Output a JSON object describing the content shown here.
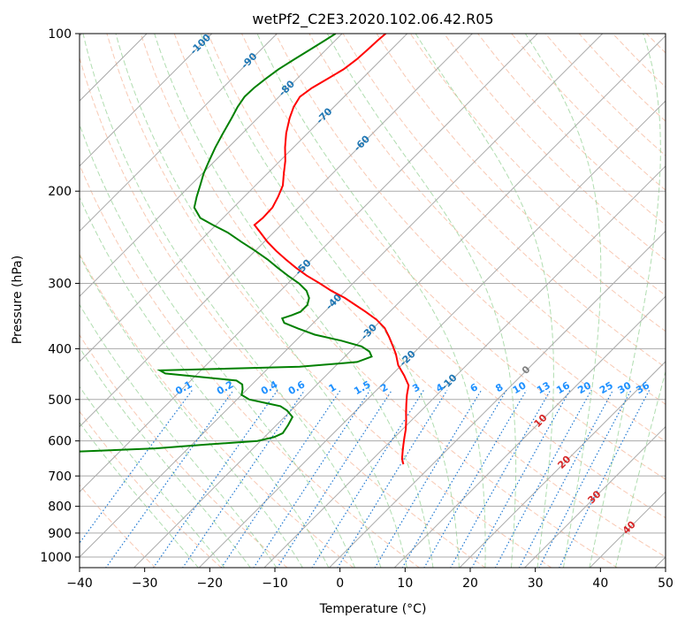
{
  "chart_data": {
    "type": "line",
    "subtype": "skew-t log-p diagram",
    "title": "wetPf2_C2E3.2020.102.06.42.R05",
    "xlabel": "Temperature (°C)",
    "ylabel": "Pressure (hPa)",
    "xlim": [
      -40,
      50
    ],
    "ylim": [
      1050,
      100
    ],
    "y_scale": "log",
    "x_ticks": [
      -40,
      -30,
      -20,
      -10,
      0,
      10,
      20,
      30,
      40,
      50
    ],
    "x_tick_labels": [
      "−40",
      "−30",
      "−20",
      "−10",
      "0",
      "10",
      "20",
      "30",
      "40",
      "50"
    ],
    "y_ticks": [
      100,
      200,
      300,
      400,
      500,
      600,
      700,
      800,
      900,
      1000
    ],
    "y_tick_labels": [
      "100",
      "200",
      "300",
      "400",
      "500",
      "600",
      "700",
      "800",
      "900",
      "1000"
    ],
    "grid": true,
    "legend": "none",
    "colors": {
      "temperature": "#ff0000",
      "dewpoint": "#008000",
      "isotherm": "#aaaaaa",
      "isobar": "#aaaaaa",
      "dry_adiabat": "#f4a582",
      "moist_adiabat": "#8fcf8f",
      "mixing_ratio": "#1f78d1",
      "isotherm_label_cold": "#1f77b4",
      "isotherm_label_zero": "#808080",
      "isotherm_label_warm": "#d62728",
      "mixing_ratio_label": "#1e90ff"
    },
    "isotherm_labels": [
      {
        "t": -100,
        "label": "-100"
      },
      {
        "t": -90,
        "label": "-90"
      },
      {
        "t": -80,
        "label": "-80"
      },
      {
        "t": -70,
        "label": "-70"
      },
      {
        "t": -60,
        "label": "-60"
      },
      {
        "t": -50,
        "label": "-50"
      },
      {
        "t": -40,
        "label": "-40"
      },
      {
        "t": -30,
        "label": "-30"
      },
      {
        "t": -20,
        "label": "-20"
      },
      {
        "t": -10,
        "label": "-10"
      },
      {
        "t": 0,
        "label": "0"
      },
      {
        "t": 10,
        "label": "10"
      },
      {
        "t": 20,
        "label": "20"
      },
      {
        "t": 30,
        "label": "30"
      },
      {
        "t": 40,
        "label": "40"
      }
    ],
    "mixing_ratio_lines": [
      0.1,
      0.2,
      0.4,
      0.6,
      1,
      1.5,
      2,
      3,
      4,
      6,
      8,
      10,
      13,
      16,
      20,
      25,
      30,
      36
    ],
    "mixing_ratio_labels": [
      "0.1",
      "0.2",
      "0.4",
      "0.6",
      "1",
      "1.5",
      "2",
      "3",
      "4",
      "6",
      "8",
      "10",
      "13",
      "16",
      "20",
      "25",
      "30",
      "36"
    ],
    "series": [
      {
        "pressure": [
          665,
          650,
          630,
          610,
          590,
          570,
          550,
          530,
          510,
          490,
          470,
          450,
          430,
          410,
          395,
          380,
          365,
          352,
          340,
          330,
          320,
          310,
          300,
          290,
          280,
          270,
          260,
          250,
          240,
          232,
          225,
          215,
          205,
          195,
          185,
          175,
          165,
          155,
          145,
          138,
          132,
          127,
          122,
          117,
          112,
          107,
          103,
          100
        ],
        "temperature": [
          -4.5,
          -5.5,
          -6.5,
          -7.5,
          -8.5,
          -9.5,
          -10.7,
          -12.0,
          -13.3,
          -14.6,
          -15.8,
          -18.0,
          -20.5,
          -22.5,
          -24.3,
          -26.2,
          -28.3,
          -30.8,
          -33.7,
          -36.3,
          -39.0,
          -42.2,
          -45.1,
          -48.3,
          -51.2,
          -54.0,
          -56.8,
          -59.5,
          -62.0,
          -64.1,
          -63.9,
          -64.0,
          -64.8,
          -65.8,
          -67.5,
          -69.2,
          -71.3,
          -73.3,
          -75.1,
          -76.2,
          -76.8,
          -76.3,
          -75.3,
          -74.3,
          -73.8,
          -73.6,
          -73.5,
          -73.3
        ]
      },
      {
        "pressure": [
          665,
          650,
          640,
          630,
          620,
          610,
          600,
          590,
          580,
          560,
          540,
          525,
          515,
          508,
          500,
          490,
          478,
          468,
          460,
          453,
          446,
          440,
          433,
          424,
          414,
          405,
          396,
          386,
          376,
          366,
          357,
          350,
          345,
          340,
          330,
          320,
          310,
          300,
          290,
          280,
          270,
          260,
          250,
          240,
          232,
          225,
          215,
          205,
          195,
          185,
          175,
          165,
          155,
          145,
          138,
          132,
          127,
          122,
          117,
          112,
          107,
          103,
          100
        ],
        "dewpoint": [
          -999,
          -85,
          -70,
          -58,
          -45,
          -38,
          -30.5,
          -28.5,
          -27.8,
          -28.2,
          -28.8,
          -30.6,
          -32.3,
          -35.0,
          -38.1,
          -40.0,
          -40.7,
          -41.5,
          -43.0,
          -49.0,
          -55.0,
          -56.3,
          -35.4,
          -27.3,
          -25.9,
          -27.0,
          -29.0,
          -33.0,
          -38.0,
          -41.5,
          -44.5,
          -45.5,
          -44.5,
          -43.7,
          -43.7,
          -44.5,
          -46.0,
          -48.3,
          -51.2,
          -54.0,
          -56.8,
          -60.0,
          -63.5,
          -67.0,
          -70.5,
          -73.5,
          -76.0,
          -77.3,
          -78.5,
          -79.8,
          -80.9,
          -82.0,
          -83.0,
          -84.0,
          -84.8,
          -85.3,
          -85.2,
          -84.8,
          -84.3,
          -83.4,
          -82.4,
          -81.6,
          -81.0
        ]
      }
    ]
  }
}
